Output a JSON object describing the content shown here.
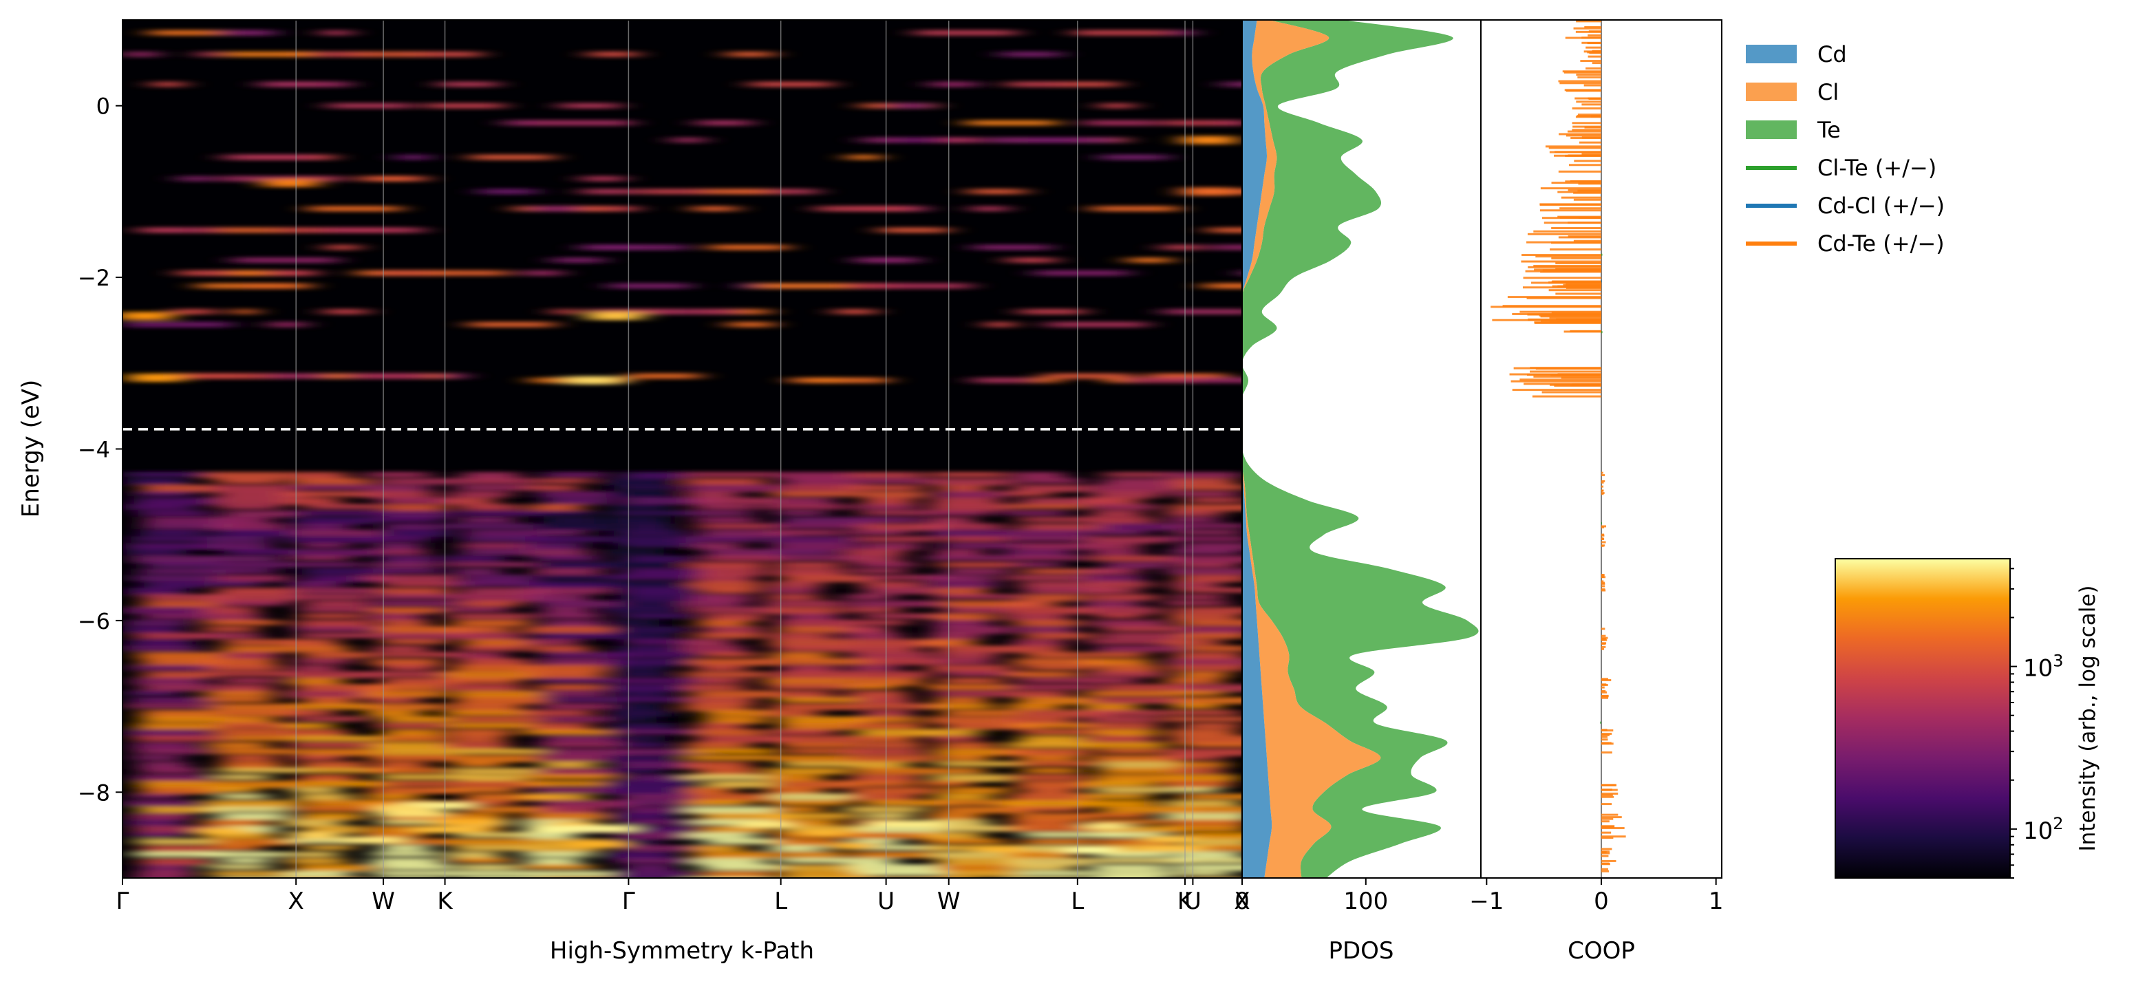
{
  "figure": {
    "ylabel": "Energy (eV)",
    "ylim": [
      -9,
      1
    ],
    "yticks": [
      0,
      -2,
      -4,
      -6,
      -8
    ],
    "ytick_labels": [
      "0",
      "−2",
      "−4",
      "−6",
      "−8"
    ],
    "fermi_level": -3.77,
    "grid": false
  },
  "chart_data": [
    {
      "type": "heatmap",
      "panel": "band-unfolding",
      "xlabel": "High-Symmetry k-Path",
      "kpath_labels": [
        "Γ",
        "X",
        "W",
        "K",
        "Γ",
        "L",
        "U",
        "W",
        "L",
        "K",
        "U",
        "X"
      ],
      "kpath_positions": [
        0,
        0.155,
        0.233,
        0.288,
        0.452,
        0.588,
        0.682,
        0.738,
        0.853,
        0.949,
        0.956,
        1.0
      ],
      "ylim": [
        -9,
        1
      ],
      "colormap": "inferno",
      "valence_band_top": -4.3,
      "conduction_bands_eV": [
        0.85,
        0.6,
        0.25,
        0.0,
        -0.2,
        -0.4,
        -0.6,
        -0.85,
        -1.0,
        -1.2,
        -1.45,
        -1.65,
        -1.8,
        -1.95,
        -2.1,
        -2.4,
        -2.55,
        -3.15,
        -3.2
      ],
      "gap_region_eV": [
        -4.3,
        -3.3
      ]
    },
    {
      "type": "area",
      "panel": "PDOS",
      "xlabel": "PDOS",
      "xlim": [
        0,
        193
      ],
      "xticks": [
        0,
        100
      ],
      "xtick_labels": [
        "0",
        "100"
      ],
      "stacked": true,
      "energy": [
        -9,
        -8.8,
        -8.6,
        -8.4,
        -8.2,
        -8,
        -7.8,
        -7.6,
        -7.4,
        -7.2,
        -7,
        -6.8,
        -6.6,
        -6.4,
        -6.2,
        -6,
        -5.8,
        -5.6,
        -5.4,
        -5.2,
        -5,
        -4.8,
        -4.6,
        -4.4,
        -4.2,
        -4,
        -3.8,
        -3.6,
        -3.4,
        -3.2,
        -3,
        -2.8,
        -2.6,
        -2.4,
        -2.2,
        -2,
        -1.8,
        -1.6,
        -1.4,
        -1.2,
        -1,
        -0.8,
        -0.6,
        -0.4,
        -0.2,
        0,
        0.2,
        0.4,
        0.6,
        0.8,
        1
      ],
      "series": [
        {
          "name": "Cd",
          "color": "#5499c7",
          "values": [
            18,
            20,
            22,
            24,
            23,
            22,
            21,
            20,
            19,
            18,
            17,
            16,
            15,
            14,
            13,
            12,
            11,
            10,
            8,
            6,
            4,
            3,
            2,
            1,
            0,
            0,
            0,
            0,
            0,
            0,
            0,
            0,
            0,
            0,
            0,
            4,
            8,
            10,
            12,
            14,
            16,
            18,
            20,
            19,
            18,
            17,
            12,
            9,
            8,
            10,
            12
          ]
        },
        {
          "name": "Cl",
          "color": "#fba04f",
          "values": [
            30,
            28,
            36,
            48,
            34,
            44,
            64,
            92,
            68,
            50,
            30,
            26,
            22,
            24,
            20,
            12,
            3,
            2,
            2,
            2,
            2,
            1,
            1,
            1,
            0,
            0,
            0,
            0,
            0,
            0,
            0,
            0,
            0,
            0,
            0,
            2,
            4,
            6,
            6,
            8,
            10,
            8,
            8,
            6,
            4,
            2,
            4,
            8,
            30,
            60,
            10
          ]
        },
        {
          "name": "Te",
          "color": "#62b660",
          "values": [
            20,
            40,
            70,
            88,
            40,
            90,
            52,
            32,
            78,
            40,
            70,
            50,
            70,
            52,
            150,
            158,
            132,
            152,
            110,
            50,
            60,
            90,
            50,
            20,
            6,
            0,
            0,
            0,
            0,
            5,
            0,
            8,
            28,
            16,
            30,
            36,
            60,
            72,
            60,
            88,
            82,
            66,
            52,
            72,
            40,
            10,
            60,
            60,
            80,
            100,
            60
          ]
        }
      ]
    },
    {
      "type": "bar",
      "panel": "COOP",
      "orientation": "horizontal",
      "xlabel": "COOP",
      "xlim": [
        -1.05,
        1.05
      ],
      "xticks": [
        -1,
        0,
        1
      ],
      "xtick_labels": [
        "−1",
        "0",
        "1"
      ],
      "series": [
        {
          "name": "Cl-Te (+/−)",
          "color": "#2ca02c",
          "energy": [
            -1.8,
            -2.6,
            -5.0,
            -7.2
          ],
          "values": [
            0.02,
            0.01,
            0.01,
            -0.01
          ]
        },
        {
          "name": "Cd-Cl (+/−)",
          "color": "#1f77b4",
          "energy": [
            -2.0
          ],
          "values": [
            0.0
          ]
        },
        {
          "name": "Cd-Te (+/−)",
          "color": "#ff7f0e",
          "energy": [
            0.9,
            0.6,
            0.3,
            0.0,
            -0.3,
            -0.6,
            -0.9,
            -1.2,
            -1.5,
            -1.8,
            -2.0,
            -2.15,
            -2.4,
            -2.55,
            -3.15,
            -3.25,
            -4.4,
            -5.0,
            -5.6,
            -6.2,
            -6.8,
            -7.4,
            -8.0,
            -8.4,
            -8.8
          ],
          "values": [
            -0.3,
            -0.2,
            -0.35,
            -0.25,
            -0.4,
            -0.45,
            -0.5,
            -0.55,
            -0.6,
            -0.7,
            -0.65,
            -0.75,
            -0.95,
            -0.6,
            -0.7,
            -0.75,
            0.03,
            0.04,
            0.05,
            0.06,
            0.08,
            0.1,
            0.14,
            0.2,
            0.12
          ]
        }
      ]
    }
  ],
  "legend": {
    "placement": "upper-right",
    "items": [
      {
        "label": "Cd",
        "kind": "patch",
        "color": "#5499c7"
      },
      {
        "label": "Cl",
        "kind": "patch",
        "color": "#fba04f"
      },
      {
        "label": "Te",
        "kind": "patch",
        "color": "#62b660"
      },
      {
        "label": "Cl-Te (+/−)",
        "kind": "line",
        "color": "#2ca02c"
      },
      {
        "label": "Cd-Cl (+/−)",
        "kind": "line",
        "color": "#1f77b4"
      },
      {
        "label": "Cd-Te (+/−)",
        "kind": "line",
        "color": "#ff7f0e"
      }
    ]
  },
  "colorbar": {
    "label": "Intensity (arb., log scale)",
    "scale": "log",
    "range": [
      50,
      4600
    ],
    "ticks": [
      100,
      1000
    ],
    "tick_labels": [
      {
        "base": "10",
        "exp": "2"
      },
      {
        "base": "10",
        "exp": "3"
      }
    ],
    "colormap": "inferno"
  }
}
